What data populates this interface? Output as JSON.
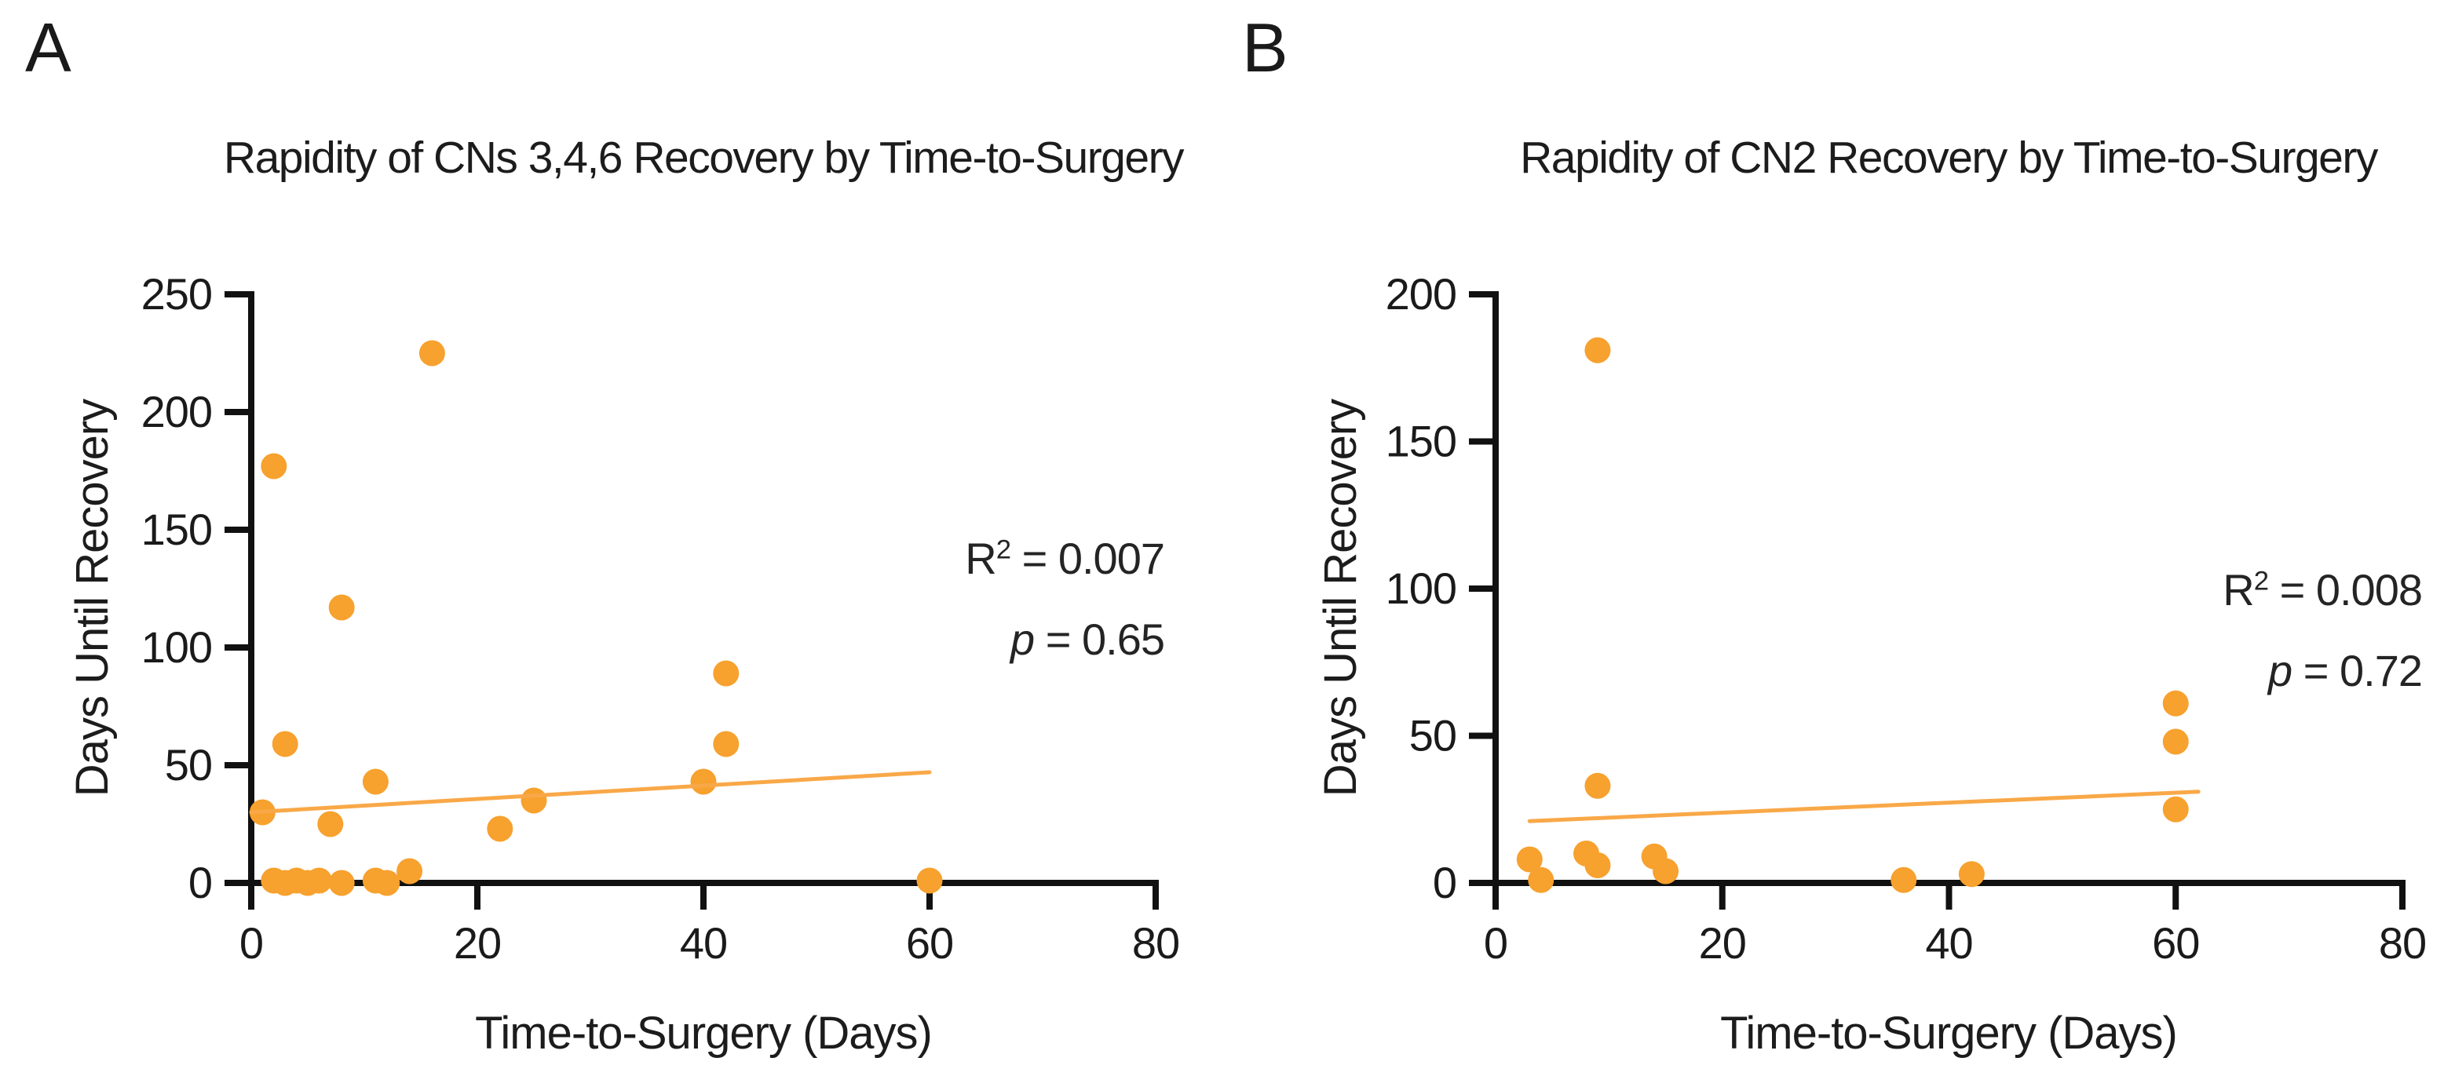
{
  "page": {
    "background": "#FFFFFF",
    "text_color": "#1A1A1A",
    "axis_color": "#111111"
  },
  "chart_data": [
    {
      "type": "scatter",
      "panel_label": "A",
      "title": "Rapidity of CNs 3,4,6 Recovery by Time-to-Surgery",
      "xlabel": "Time-to-Surgery (Days)",
      "ylabel": "Days Until Recovery",
      "xlim": [
        0,
        80
      ],
      "ylim": [
        0,
        250
      ],
      "xticks": [
        0,
        20,
        40,
        60,
        80
      ],
      "yticks": [
        0,
        50,
        100,
        150,
        200,
        250
      ],
      "grid": false,
      "legend": "none",
      "marker_color": "#F7A12E",
      "line_color": "#F9A848",
      "points": [
        [
          16,
          225
        ],
        [
          2,
          177
        ],
        [
          8,
          117
        ],
        [
          42,
          89
        ],
        [
          3,
          59
        ],
        [
          42,
          59
        ],
        [
          11,
          43
        ],
        [
          40,
          43
        ],
        [
          25,
          35
        ],
        [
          1,
          30
        ],
        [
          7,
          25
        ],
        [
          22,
          23
        ],
        [
          2,
          1
        ],
        [
          3,
          0
        ],
        [
          4,
          1
        ],
        [
          5,
          0
        ],
        [
          6,
          1
        ],
        [
          8,
          0
        ],
        [
          11,
          1
        ],
        [
          12,
          0
        ],
        [
          14,
          5
        ],
        [
          60,
          1
        ]
      ],
      "trend_line": {
        "x1": 0,
        "y1": 30,
        "x2": 60,
        "y2": 47
      },
      "annotations": {
        "r_base": "R",
        "r_sup": "2",
        "r_rest": " = 0.007",
        "p_base": "p",
        "p_rest": " = 0.65"
      }
    },
    {
      "type": "scatter",
      "panel_label": "B",
      "title": "Rapidity of CN2 Recovery by Time-to-Surgery",
      "xlabel": "Time-to-Surgery (Days)",
      "ylabel": "Days Until Recovery",
      "xlim": [
        0,
        80
      ],
      "ylim": [
        0,
        200
      ],
      "xticks": [
        0,
        20,
        40,
        60,
        80
      ],
      "yticks": [
        0,
        50,
        100,
        150,
        200
      ],
      "grid": false,
      "legend": "none",
      "marker_color": "#F7A12E",
      "line_color": "#F9A848",
      "points": [
        [
          9,
          181
        ],
        [
          9,
          33
        ],
        [
          3,
          8
        ],
        [
          4,
          1
        ],
        [
          8,
          10
        ],
        [
          9,
          6
        ],
        [
          14,
          9
        ],
        [
          15,
          4
        ],
        [
          36,
          1
        ],
        [
          42,
          3
        ],
        [
          60,
          61
        ],
        [
          60,
          48
        ],
        [
          60,
          25
        ]
      ],
      "trend_line": {
        "x1": 3,
        "y1": 21,
        "x2": 62,
        "y2": 31
      },
      "annotations": {
        "r_base": "R",
        "r_sup": "2",
        "r_rest": " = 0.008",
        "p_base": "p",
        "p_rest": " = 0.72"
      }
    }
  ]
}
